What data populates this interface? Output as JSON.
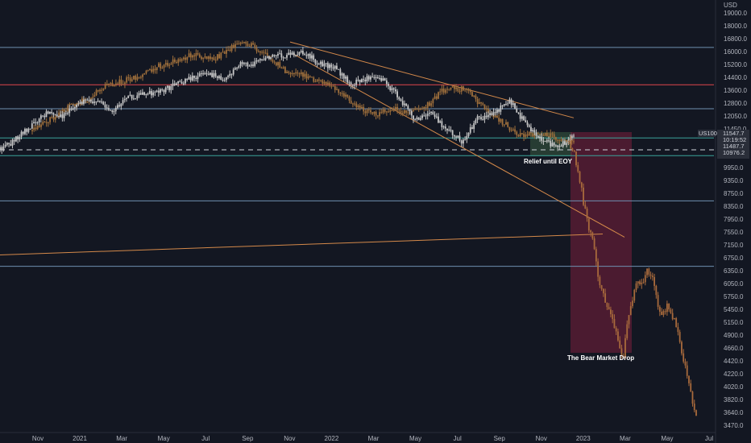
{
  "currency_label": "USD",
  "colors": {
    "background": "#131722",
    "bull_candle": "#c8c8c8",
    "overlay_candle": "#a0703c",
    "projection_candle": "#a86a3c",
    "red_line": "#e0474c",
    "level_line": "#6f8fb0",
    "green_level": "#3aa39a",
    "trendline": "#d4894a",
    "bear_zone": "#7a1f3d",
    "relief_zone": "#2f4a3a"
  },
  "chart_data": {
    "type": "candlestick",
    "title": "",
    "xlabel": "",
    "ylabel": "",
    "y_scale": "log",
    "ylim": [
      3350,
      19800
    ],
    "x_tick_labels": [
      "Nov",
      "2021",
      "Mar",
      "May",
      "Jul",
      "Sep",
      "Nov",
      "2022",
      "Mar",
      "May",
      "Jul",
      "Sep",
      "Nov",
      "2023",
      "Mar",
      "May",
      "Jul"
    ],
    "y_tick_labels": [
      "19000.0",
      "18000.0",
      "16800.0",
      "16000.0",
      "15200.0",
      "14400.0",
      "13600.0",
      "12800.0",
      "12050.0",
      "11450.0",
      "10850.0",
      "10200.0",
      "9950.0",
      "9350.0",
      "8750.0",
      "8350.0",
      "7950.0",
      "7550.0",
      "7150.0",
      "6750.0",
      "6350.0",
      "6050.0",
      "5750.0",
      "5450.0",
      "5150.0",
      "4900.0",
      "4660.0",
      "4420.0",
      "4220.0",
      "4020.0",
      "3820.0",
      "3640.0",
      "3470.0"
    ],
    "horizontal_levels": [
      16900,
      14400,
      13000,
      11470,
      10630,
      8760,
      6620
    ],
    "dashed_level": 10900,
    "price_tags": [
      "US100",
      "11547.7",
      "10:19:52",
      "11487.7",
      "10976.2"
    ],
    "series": [
      {
        "role": "actual",
        "values": [
          10900,
          11400,
          12100,
          12800,
          12600,
          13300,
          13500,
          12800,
          13600,
          13800,
          14000,
          14400,
          14800,
          15200,
          14700,
          15700,
          15800,
          16200,
          16400,
          16600,
          15800,
          15500,
          14400,
          14800,
          14700,
          13700,
          12400,
          12800,
          11900,
          11300,
          12500,
          12700,
          13500,
          12100,
          11300,
          11100,
          11500
        ]
      },
      {
        "role": "overlay",
        "values": [
          11800,
          12400,
          13100,
          13500,
          14300,
          14600,
          15000,
          15600,
          16000,
          16400,
          16000,
          16900,
          17200,
          16300,
          15300,
          15000,
          14600,
          14000,
          13100,
          12700,
          13000,
          12800,
          13300,
          14300,
          14100,
          13100,
          12300,
          11600,
          11700,
          11500,
          11200
        ]
      },
      {
        "role": "projection",
        "values": [
          11300,
          10800,
          9800,
          8700,
          7800,
          7300,
          6300,
          5900,
          5500,
          5200,
          4900,
          4400,
          5200,
          5800,
          6300,
          6100,
          6500,
          6300,
          5700,
          5300,
          5600,
          5400,
          5100,
          4600,
          4200,
          3800,
          3480
        ]
      }
    ],
    "trendlines": [
      {
        "from": [
          "2021-Sep",
          17300
        ],
        "to": [
          "2022-Dec",
          12500
        ]
      },
      {
        "from": [
          "2021-Nov",
          16400
        ],
        "to": [
          "2023-Mar",
          7500
        ]
      },
      {
        "from": [
          "2020-Oct",
          6950
        ],
        "to": [
          "2023-Feb",
          7600
        ]
      }
    ],
    "annotations": [
      {
        "text": "Relief until EOY"
      },
      {
        "text": "The Bear Market Drop"
      }
    ]
  }
}
